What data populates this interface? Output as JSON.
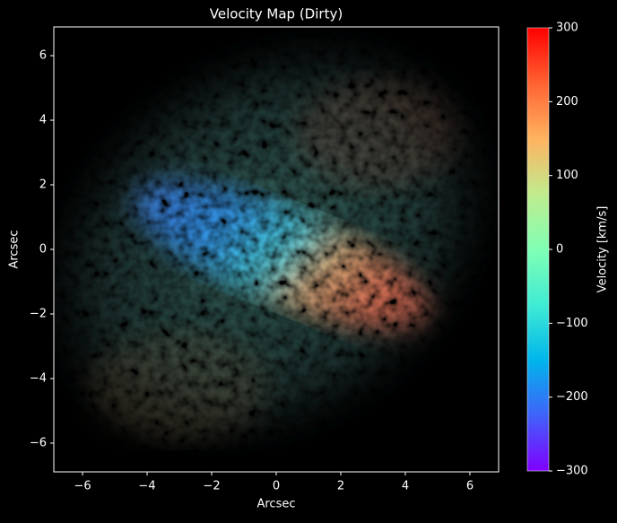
{
  "chart_data": {
    "type": "image",
    "title": "Velocity Map (Dirty)",
    "x_label": "Arcsec",
    "y_label": "Arcsec",
    "xlim": [
      -6.89,
      6.89
    ],
    "ylim": [
      -6.89,
      6.89
    ],
    "xticks": [
      {
        "value": -6,
        "label": "−6"
      },
      {
        "value": -4,
        "label": "−4"
      },
      {
        "value": -2,
        "label": "−2"
      },
      0,
      2,
      4,
      6
    ],
    "yticks": [
      {
        "value": -6,
        "label": "−6"
      },
      {
        "value": -4,
        "label": "−4"
      },
      {
        "value": -2,
        "label": "−2"
      },
      0,
      2,
      4,
      6
    ],
    "colormap": "rainbow",
    "colorbar_label": "Velocity [km/s]",
    "clim": [
      -300,
      300
    ],
    "cticks": [
      {
        "value": -300,
        "label": "−300"
      },
      {
        "value": -200,
        "label": "−200"
      },
      {
        "value": -100,
        "label": "−100"
      },
      0,
      100,
      200,
      300
    ]
  }
}
